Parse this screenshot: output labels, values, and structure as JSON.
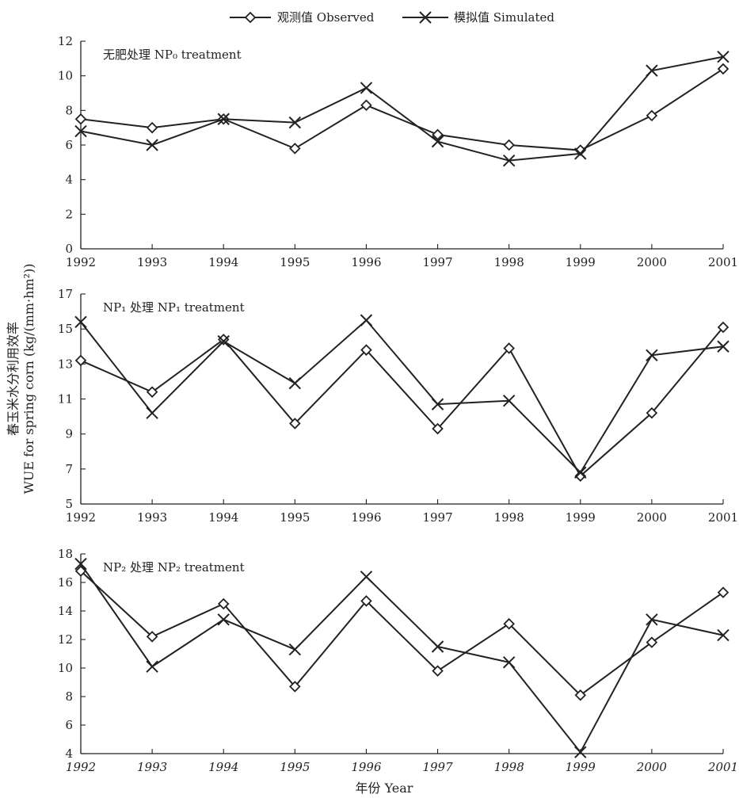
{
  "legend": {
    "observed": "观测值 Observed",
    "simulated": "模拟值 Simulated"
  },
  "axis": {
    "ylabel_cn": "春玉米水分利用效率",
    "ylabel_en": "WUE for spring corn (kg/(mm·hm²))",
    "xlabel": "年份 Year"
  },
  "chart_data": [
    {
      "type": "line",
      "title": "无肥处理 NP₀ treatment",
      "x": [
        1992,
        1993,
        1994,
        1995,
        1996,
        1997,
        1998,
        1999,
        2000,
        2001
      ],
      "ylim": [
        0,
        12
      ],
      "yticks": [
        0,
        2,
        4,
        6,
        8,
        10,
        12
      ],
      "series": [
        {
          "name": "观测值 Observed",
          "marker": "diamond",
          "values": [
            7.5,
            7.0,
            7.5,
            5.8,
            8.3,
            6.6,
            6.0,
            5.7,
            7.7,
            10.4
          ]
        },
        {
          "name": "模拟值 Simulated",
          "marker": "cross",
          "values": [
            6.8,
            6.0,
            7.5,
            7.3,
            9.3,
            6.2,
            5.1,
            5.5,
            10.3,
            11.1
          ]
        }
      ],
      "grid": false
    },
    {
      "type": "line",
      "title": "NP₁ 处理 NP₁ treatment",
      "x": [
        1992,
        1993,
        1994,
        1995,
        1996,
        1997,
        1998,
        1999,
        2000,
        2001
      ],
      "ylim": [
        5,
        17
      ],
      "yticks": [
        5,
        7,
        9,
        11,
        13,
        15,
        17
      ],
      "series": [
        {
          "name": "观测值 Observed",
          "marker": "diamond",
          "values": [
            13.2,
            11.4,
            14.4,
            9.6,
            13.8,
            9.3,
            13.9,
            6.6,
            10.2,
            15.1
          ]
        },
        {
          "name": "模拟值 Simulated",
          "marker": "cross",
          "values": [
            15.4,
            10.2,
            14.3,
            11.9,
            15.5,
            10.7,
            10.9,
            6.8,
            13.5,
            14.0
          ]
        }
      ],
      "grid": false
    },
    {
      "type": "line",
      "title": "NP₂ 处理 NP₂ treatment",
      "x": [
        1992,
        1993,
        1994,
        1995,
        1996,
        1997,
        1998,
        1999,
        2000,
        2001
      ],
      "ylim": [
        4,
        18
      ],
      "yticks": [
        4,
        6,
        8,
        10,
        12,
        14,
        16,
        18
      ],
      "series": [
        {
          "name": "观测值 Observed",
          "marker": "diamond",
          "values": [
            16.8,
            12.2,
            14.5,
            8.7,
            14.7,
            9.8,
            13.1,
            8.1,
            11.8,
            15.3
          ]
        },
        {
          "name": "模拟值 Simulated",
          "marker": "cross",
          "values": [
            17.3,
            10.1,
            13.4,
            11.3,
            16.4,
            11.5,
            10.4,
            4.1,
            13.4,
            12.3
          ]
        }
      ],
      "grid": false
    }
  ]
}
